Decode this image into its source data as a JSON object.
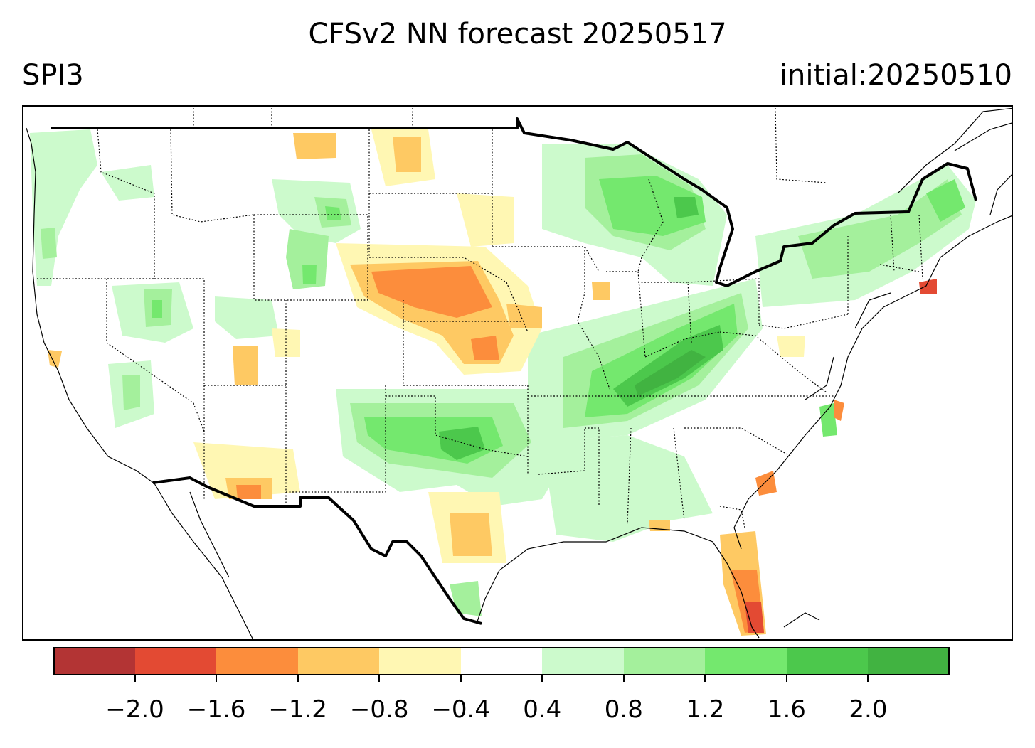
{
  "title": "CFSv2 NN forecast 20250517",
  "variable": "SPI3",
  "initial": "initial:20250510",
  "colorbar": {
    "colors": [
      "#b33434",
      "#e34a33",
      "#fc8d3c",
      "#fec963",
      "#fff7b3",
      "#ffffff",
      "#ccfacc",
      "#a4f09c",
      "#74e86e",
      "#4cc84c",
      "#41b341"
    ],
    "tick_labels": [
      "−2.0",
      "−1.6",
      "−1.2",
      "−0.8",
      "−0.4",
      "0.4",
      "0.8",
      "1.2",
      "1.6",
      "2.0"
    ]
  }
}
